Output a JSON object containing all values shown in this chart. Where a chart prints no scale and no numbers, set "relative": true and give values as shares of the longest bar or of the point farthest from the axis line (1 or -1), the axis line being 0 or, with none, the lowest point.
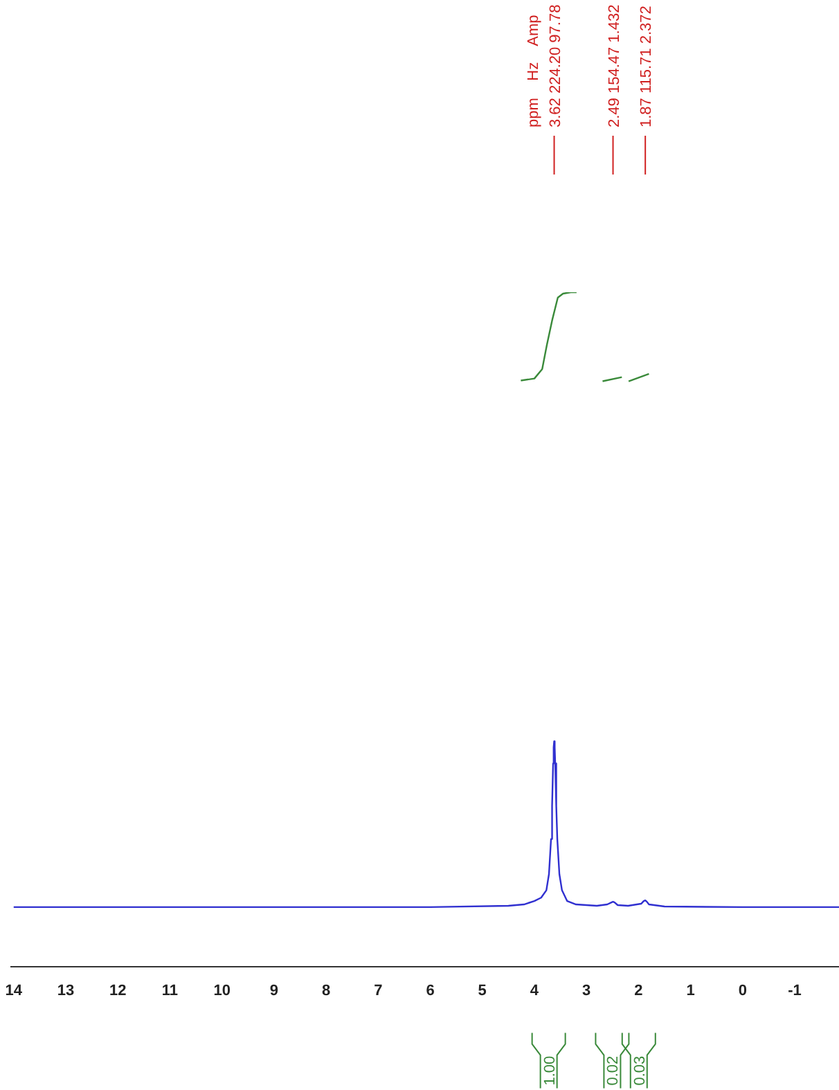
{
  "chart_data": {
    "type": "line",
    "relative": true,
    "legend": false,
    "grid": false,
    "marker": "none",
    "line_style": "solid",
    "tick_labels": "x",
    "xlim": [
      14.05,
      -1.85
    ],
    "xticks": [
      14,
      13,
      12,
      11,
      10,
      9,
      8,
      7,
      6,
      5,
      4,
      3,
      2,
      1,
      0,
      -1
    ],
    "series": [
      {
        "color": "#3030d0",
        "x": [
          14,
          10,
          6,
          4.5,
          4.2,
          4.0,
          3.87,
          3.77,
          3.72,
          3.68,
          3.66,
          3.64,
          3.63,
          3.62,
          3.61,
          3.6,
          3.58,
          3.56,
          3.52,
          3.47,
          3.37,
          3.2,
          2.8,
          2.6,
          2.52,
          2.49,
          2.46,
          2.4,
          2.2,
          1.95,
          1.9,
          1.87,
          1.84,
          1.8,
          1.5,
          0,
          -1.85
        ],
        "values": [
          0.088,
          0.088,
          0.088,
          0.09,
          0.092,
          0.097,
          0.102,
          0.113,
          0.137,
          0.189,
          0.238,
          0.301,
          0.325,
          0.334,
          0.325,
          0.301,
          0.238,
          0.189,
          0.137,
          0.113,
          0.097,
          0.092,
          0.09,
          0.092,
          0.095,
          0.096,
          0.095,
          0.091,
          0.09,
          0.093,
          0.097,
          0.098,
          0.096,
          0.092,
          0.089,
          0.088,
          0.088
        ]
      },
      {
        "color": "#3a8a3a",
        "x": [
          4.26,
          4.0,
          3.85,
          3.76,
          3.66,
          3.55,
          3.45,
          3.3,
          3.19
        ],
        "values": [
          0.869,
          0.872,
          0.886,
          0.922,
          0.958,
          0.992,
          0.998,
          1,
          1
        ]
      },
      {
        "color": "#3a8a3a",
        "x": [
          2.69,
          2.32
        ],
        "values": [
          0.868,
          0.874
        ]
      },
      {
        "color": "#3a8a3a",
        "x": [
          2.19,
          1.8
        ],
        "values": [
          0.868,
          0.879
        ]
      }
    ],
    "annotations": [
      "ppm    Hz    Amp",
      {
        "text": "3.62 224.20 97.78",
        "x": 3.62
      },
      {
        "text": "2.49 154.47 1.432",
        "x": 2.49
      },
      {
        "text": "1.87 115.71 2.372",
        "x": 1.87
      },
      "1.00",
      "0.02",
      "0.03"
    ]
  }
}
